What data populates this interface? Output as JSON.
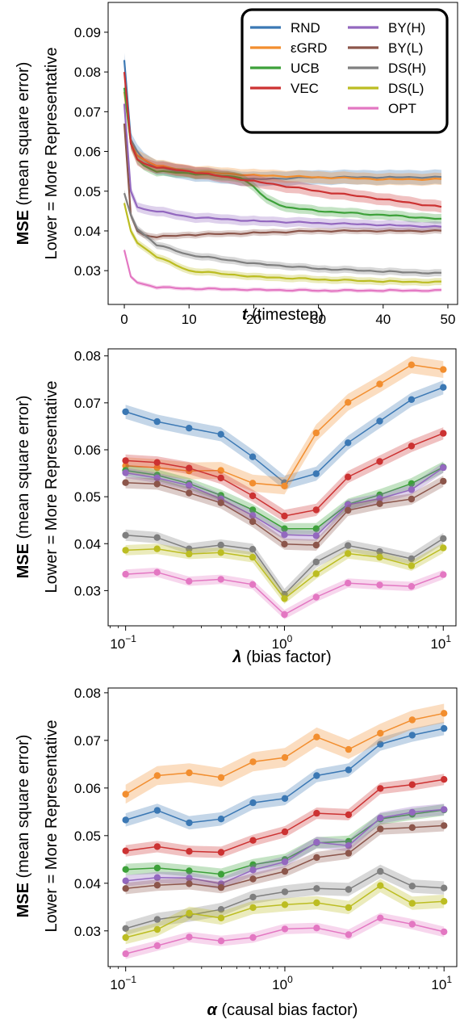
{
  "colors": {
    "RND": "#3b78b4",
    "εGRD": "#f28e2f",
    "UCB": "#3da13a",
    "VEC": "#cc3232",
    "BY(H)": "#9368bf",
    "BY(L)": "#8c564b",
    "DS(H)": "#7f7f7f",
    "DS(L)": "#bcbd22",
    "OPT": "#e377c2"
  },
  "chart_data": [
    {
      "type": "line",
      "xlabel_bold": "t",
      "xlabel_rest": " (timestep)",
      "ylabel_bold": "MSE",
      "ylabel_rest": " (mean square error)",
      "ylabel_line2": "Lower = More Representative",
      "xlim": [
        -2.5,
        51.5
      ],
      "ylim": [
        0.0215,
        0.0975
      ],
      "x_ticks": [
        0,
        10,
        20,
        30,
        40,
        50
      ],
      "x_tick_labels": [
        "0",
        "10",
        "20",
        "30",
        "40",
        "50"
      ],
      "y_ticks": [
        0.03,
        0.04,
        0.05,
        0.06,
        0.07,
        0.08,
        0.09
      ],
      "y_tick_labels": [
        "0.03",
        "0.04",
        "0.05",
        "0.06",
        "0.07",
        "0.08",
        "0.09"
      ],
      "markers": false,
      "legend": {
        "placement": "top-right",
        "entries": [
          "RND",
          "εGRD",
          "UCB",
          "VEC",
          "BY(H)",
          "BY(L)",
          "DS(H)",
          "DS(L)",
          "OPT"
        ]
      },
      "series": [
        {
          "name": "RND",
          "anchors": [
            [
              0,
              0.083
            ],
            [
              1,
              0.063
            ],
            [
              2,
              0.06
            ],
            [
              3,
              0.058
            ],
            [
              5,
              0.056
            ],
            [
              10,
              0.0545
            ],
            [
              20,
              0.053
            ],
            [
              30,
              0.0535
            ],
            [
              40,
              0.0535
            ],
            [
              49,
              0.0535
            ]
          ],
          "band": 0.0018
        },
        {
          "name": "εGRD",
          "anchors": [
            [
              0,
              0.075
            ],
            [
              1,
              0.062
            ],
            [
              2,
              0.059
            ],
            [
              3,
              0.058
            ],
            [
              5,
              0.0565
            ],
            [
              10,
              0.055
            ],
            [
              20,
              0.054
            ],
            [
              30,
              0.0535
            ],
            [
              40,
              0.053
            ],
            [
              49,
              0.053
            ]
          ],
          "band": 0.0015
        },
        {
          "name": "UCB",
          "anchors": [
            [
              0,
              0.076
            ],
            [
              1,
              0.062
            ],
            [
              2,
              0.058
            ],
            [
              3,
              0.0565
            ],
            [
              5,
              0.055
            ],
            [
              10,
              0.0545
            ],
            [
              18,
              0.0535
            ],
            [
              20,
              0.051
            ],
            [
              22,
              0.048
            ],
            [
              25,
              0.046
            ],
            [
              30,
              0.045
            ],
            [
              40,
              0.044
            ],
            [
              49,
              0.043
            ]
          ],
          "band": 0.0012
        },
        {
          "name": "VEC",
          "anchors": [
            [
              0,
              0.08
            ],
            [
              1,
              0.062
            ],
            [
              2,
              0.058
            ],
            [
              3,
              0.057
            ],
            [
              5,
              0.056
            ],
            [
              10,
              0.055
            ],
            [
              20,
              0.0525
            ],
            [
              30,
              0.05
            ],
            [
              40,
              0.048
            ],
            [
              49,
              0.046
            ]
          ],
          "band": 0.0015
        },
        {
          "name": "BY(H)",
          "anchors": [
            [
              0,
              0.072
            ],
            [
              1,
              0.05
            ],
            [
              2,
              0.046
            ],
            [
              3,
              0.0455
            ],
            [
              5,
              0.045
            ],
            [
              10,
              0.0435
            ],
            [
              20,
              0.0425
            ],
            [
              30,
              0.042
            ],
            [
              40,
              0.0415
            ],
            [
              49,
              0.041
            ]
          ],
          "band": 0.0012
        },
        {
          "name": "BY(L)",
          "anchors": [
            [
              0,
              0.067
            ],
            [
              1,
              0.044
            ],
            [
              2,
              0.04
            ],
            [
              3,
              0.039
            ],
            [
              5,
              0.0385
            ],
            [
              10,
              0.039
            ],
            [
              20,
              0.0395
            ],
            [
              30,
              0.04
            ],
            [
              40,
              0.04
            ],
            [
              49,
              0.04
            ]
          ],
          "band": 0.0008
        },
        {
          "name": "DS(H)",
          "anchors": [
            [
              0,
              0.0495
            ],
            [
              1,
              0.044
            ],
            [
              2,
              0.0405
            ],
            [
              5,
              0.0365
            ],
            [
              10,
              0.034
            ],
            [
              20,
              0.0318
            ],
            [
              30,
              0.0305
            ],
            [
              40,
              0.0298
            ],
            [
              49,
              0.0293
            ]
          ],
          "band": 0.0009
        },
        {
          "name": "DS(L)",
          "anchors": [
            [
              0,
              0.047
            ],
            [
              1,
              0.04
            ],
            [
              2,
              0.037
            ],
            [
              5,
              0.0335
            ],
            [
              10,
              0.03
            ],
            [
              20,
              0.0285
            ],
            [
              30,
              0.0278
            ],
            [
              40,
              0.0273
            ],
            [
              49,
              0.0271
            ]
          ],
          "band": 0.0009
        },
        {
          "name": "OPT",
          "anchors": [
            [
              0,
              0.0352
            ],
            [
              1,
              0.0285
            ],
            [
              2,
              0.027
            ],
            [
              5,
              0.0258
            ],
            [
              10,
              0.0255
            ],
            [
              20,
              0.0252
            ],
            [
              30,
              0.025
            ],
            [
              40,
              0.025
            ],
            [
              49,
              0.025
            ]
          ],
          "band": 0.0005
        }
      ]
    },
    {
      "type": "line",
      "xscale": "log",
      "xlabel_bold": "λ",
      "xlabel_rest": " (bias factor)",
      "ylabel_bold": "MSE",
      "ylabel_rest": " (mean square error)",
      "ylabel_line2": "Lower = More Representative",
      "xlim_log10": [
        -1.11,
        1.08
      ],
      "ylim": [
        0.0225,
        0.0815
      ],
      "x_ticks_log10": [
        -1,
        0,
        1
      ],
      "x_tick_base": "10",
      "x_tick_exps": [
        "−1",
        "0",
        "1"
      ],
      "y_ticks": [
        0.03,
        0.04,
        0.05,
        0.06,
        0.07,
        0.08
      ],
      "y_tick_labels": [
        "0.03",
        "0.04",
        "0.05",
        "0.06",
        "0.07",
        "0.08"
      ],
      "markers": true,
      "x": [
        0.1,
        0.158,
        0.251,
        0.398,
        0.631,
        1.0,
        1.585,
        2.512,
        3.981,
        6.31,
        10.0
      ],
      "series": [
        {
          "name": "RND",
          "values": [
            0.0681,
            0.066,
            0.0646,
            0.0633,
            0.0585,
            0.053,
            0.0549,
            0.0615,
            0.0661,
            0.0707,
            0.0733
          ],
          "band": 0.0015
        },
        {
          "name": "εGRD",
          "values": [
            0.0566,
            0.0562,
            0.0555,
            0.0556,
            0.0529,
            0.0523,
            0.0636,
            0.0701,
            0.074,
            0.0781,
            0.0771
          ],
          "band": 0.0018
        },
        {
          "name": "UCB",
          "values": [
            0.0556,
            0.0546,
            0.0528,
            0.0503,
            0.0472,
            0.0432,
            0.0432,
            0.0484,
            0.0504,
            0.0528,
            0.0563
          ],
          "band": 0.0012
        },
        {
          "name": "VEC",
          "values": [
            0.0577,
            0.0573,
            0.0561,
            0.054,
            0.0502,
            0.0459,
            0.0472,
            0.0542,
            0.0575,
            0.0608,
            0.0635
          ],
          "band": 0.0013
        },
        {
          "name": "BY(H)",
          "values": [
            0.0551,
            0.054,
            0.0524,
            0.0495,
            0.046,
            0.0419,
            0.0417,
            0.0483,
            0.0496,
            0.0515,
            0.0562
          ],
          "band": 0.0011
        },
        {
          "name": "BY(L)",
          "values": [
            0.053,
            0.0527,
            0.0508,
            0.0487,
            0.0447,
            0.0399,
            0.0397,
            0.0471,
            0.0485,
            0.0495,
            0.0533
          ],
          "band": 0.0012
        },
        {
          "name": "DS(H)",
          "values": [
            0.0418,
            0.0413,
            0.0389,
            0.0397,
            0.0388,
            0.0292,
            0.0361,
            0.0396,
            0.0383,
            0.0368,
            0.0411
          ],
          "band": 0.0012
        },
        {
          "name": "DS(L)",
          "values": [
            0.0386,
            0.0389,
            0.0378,
            0.0381,
            0.0371,
            0.0283,
            0.0336,
            0.0379,
            0.0371,
            0.0353,
            0.0391
          ],
          "band": 0.0011
        },
        {
          "name": "OPT",
          "values": [
            0.0335,
            0.0339,
            0.032,
            0.0324,
            0.0313,
            0.0249,
            0.0286,
            0.0316,
            0.0312,
            0.0309,
            0.0334
          ],
          "band": 0.001
        }
      ]
    },
    {
      "type": "line",
      "xscale": "log",
      "xlabel_bold": "α",
      "xlabel_rest": " (causal bias factor)",
      "ylabel_bold": "MSE",
      "ylabel_rest": " (mean square error)",
      "ylabel_line2": "Lower = More Representative",
      "xlim_log10": [
        -1.11,
        1.08
      ],
      "ylim": [
        0.0225,
        0.081
      ],
      "x_ticks_log10": [
        -1,
        0,
        1
      ],
      "x_tick_base": "10",
      "x_tick_exps": [
        "−1",
        "0",
        "1"
      ],
      "y_ticks": [
        0.03,
        0.04,
        0.05,
        0.06,
        0.07,
        0.08
      ],
      "y_tick_labels": [
        "0.03",
        "0.04",
        "0.05",
        "0.06",
        "0.07",
        "0.08"
      ],
      "markers": true,
      "x": [
        0.1,
        0.158,
        0.251,
        0.398,
        0.631,
        1.0,
        1.585,
        2.512,
        3.981,
        6.31,
        10.0
      ],
      "series": [
        {
          "name": "RND",
          "values": [
            0.0533,
            0.0553,
            0.0527,
            0.0535,
            0.0569,
            0.0578,
            0.0626,
            0.0638,
            0.0692,
            0.0711,
            0.0725
          ],
          "band": 0.0014
        },
        {
          "name": "εGRD",
          "values": [
            0.0587,
            0.0626,
            0.0632,
            0.0622,
            0.0655,
            0.0664,
            0.0707,
            0.0681,
            0.0715,
            0.0743,
            0.0757
          ],
          "band": 0.002
        },
        {
          "name": "UCB",
          "values": [
            0.0429,
            0.0432,
            0.0426,
            0.0419,
            0.0439,
            0.045,
            0.0485,
            0.0488,
            0.0535,
            0.0545,
            0.0554
          ],
          "band": 0.0012
        },
        {
          "name": "VEC",
          "values": [
            0.0468,
            0.0477,
            0.0467,
            0.0465,
            0.049,
            0.0508,
            0.0547,
            0.0544,
            0.0599,
            0.0607,
            0.0618
          ],
          "band": 0.0012
        },
        {
          "name": "BY(H)",
          "values": [
            0.0405,
            0.0412,
            0.0411,
            0.0399,
            0.0428,
            0.0445,
            0.0486,
            0.0479,
            0.0537,
            0.0549,
            0.0555
          ],
          "band": 0.0012
        },
        {
          "name": "BY(L)",
          "values": [
            0.0389,
            0.0396,
            0.0399,
            0.0391,
            0.0409,
            0.0425,
            0.0454,
            0.0463,
            0.0514,
            0.0517,
            0.0521
          ],
          "band": 0.0012
        },
        {
          "name": "DS(H)",
          "values": [
            0.0305,
            0.0324,
            0.0333,
            0.0345,
            0.0371,
            0.0382,
            0.0389,
            0.0387,
            0.0425,
            0.0394,
            0.039
          ],
          "band": 0.0014
        },
        {
          "name": "DS(L)",
          "values": [
            0.0286,
            0.0303,
            0.0337,
            0.0327,
            0.0349,
            0.0355,
            0.0359,
            0.0349,
            0.0395,
            0.0358,
            0.0362
          ],
          "band": 0.0014
        },
        {
          "name": "OPT",
          "values": [
            0.0252,
            0.0269,
            0.0287,
            0.0279,
            0.0286,
            0.0304,
            0.0306,
            0.0292,
            0.0327,
            0.0314,
            0.0298
          ],
          "band": 0.0011
        }
      ]
    }
  ]
}
